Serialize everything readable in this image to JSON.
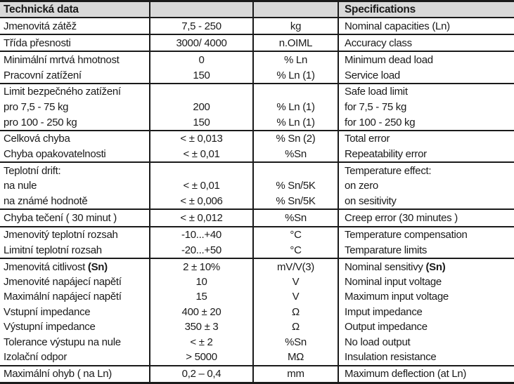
{
  "table": {
    "colors": {
      "header_background": "#d9d9d9",
      "border": "#1a1a1a",
      "text": "#1a1a1a",
      "page_background": "#ffffff"
    },
    "header": {
      "cz": "Technická data",
      "value": "",
      "unit": "",
      "en": "Specifications"
    },
    "rows": [
      {
        "cz": "Jmenovitá zátěž",
        "value": "7,5 - 250",
        "unit": "kg",
        "en": "Nominal capacities (Ln)",
        "group_end": true
      },
      {
        "cz": "Třída přesnosti",
        "value": "3000/ 4000",
        "unit": "n.OIML",
        "en": "Accuracy class",
        "group_end": true
      },
      {
        "cz": "Minimální mrtvá hmotnost",
        "value": "0",
        "unit": "% Ln",
        "en": "Minimum dead load",
        "group_end": false
      },
      {
        "cz": "Pracovní zatížení",
        "value": "150",
        "unit": "% Ln (1)",
        "en": "Service load",
        "group_end": true
      },
      {
        "cz": "Limit bezpečného zatížení",
        "value": "",
        "unit": "",
        "en": "Safe load limit",
        "group_end": false
      },
      {
        "cz": "pro 7,5 - 75 kg",
        "value": "200",
        "unit": "% Ln (1)",
        "en": "for 7,5 - 75 kg",
        "group_end": false
      },
      {
        "cz": "pro 100 - 250 kg",
        "value": "150",
        "unit": "% Ln (1)",
        "en": "for 100 - 250 kg",
        "group_end": true
      },
      {
        "cz": "Celková chyba",
        "value": "< ± 0,013",
        "unit": "% Sn (2)",
        "en": "Total error",
        "group_end": false
      },
      {
        "cz": "Chyba opakovatelnosti",
        "value": "< ± 0,01",
        "unit": "%Sn",
        "en": "Repeatability error",
        "group_end": true
      },
      {
        "cz": "Teplotní drift:",
        "value": "",
        "unit": "",
        "en": "Temperature effect:",
        "group_end": false
      },
      {
        "cz": "na nule",
        "value": "< ± 0,01",
        "unit": "% Sn/5K",
        "en": "on zero",
        "group_end": false
      },
      {
        "cz": "na známé hodnotě",
        "value": "< ± 0,006",
        "unit": "% Sn/5K",
        "en": "on sesitivity",
        "group_end": true
      },
      {
        "cz": "Chyba tečení ( 30 minut )",
        "value": "< ± 0,012",
        "unit": "%Sn",
        "en": "Creep error (30 minutes )",
        "group_end": true
      },
      {
        "cz": "Jmenovitý teplotní rozsah",
        "value": "-10...+40",
        "unit": "°C",
        "en": "Temperature compensation",
        "group_end": false
      },
      {
        "cz": "Limitní teplotní rozsah",
        "value": "-20...+50",
        "unit": "°C",
        "en": "Temparature limits",
        "group_end": true
      },
      {
        "cz": "Jmenovitá citlivost ",
        "cz_bold": "(Sn)",
        "value": "2 ± 10%",
        "unit": "mV/V(3)",
        "en": "Nominal sensitivy ",
        "en_bold": "(Sn)",
        "group_end": false
      },
      {
        "cz": "Jmenovité napájecí napětí",
        "value": "10",
        "unit": "V",
        "en": "Nominal input voltage",
        "group_end": false
      },
      {
        "cz": "Maximální napájecí napětí",
        "value": "15",
        "unit": "V",
        "en": "Maximum input voltage",
        "group_end": false
      },
      {
        "cz": "Vstupní impedance",
        "value": "400 ± 20",
        "unit": "Ω",
        "en": "Imput impedance",
        "group_end": false
      },
      {
        "cz": "Výstupní impedance",
        "value": "350 ± 3",
        "unit": "Ω",
        "en": "Output impedance",
        "group_end": false
      },
      {
        "cz": "Tolerance výstupu na nule",
        "value": "< ± 2",
        "unit": "%Sn",
        "en": "No load output",
        "group_end": false
      },
      {
        "cz": "Izolační odpor",
        "value": "> 5000",
        "unit": "MΩ",
        "en": "Insulation resistance",
        "group_end": true
      },
      {
        "cz": "Maximální ohyb ( na Ln)",
        "value": "0,2 – 0,4",
        "unit": "mm",
        "en": "Maximum deflection (at Ln)",
        "group_end": false
      }
    ]
  }
}
